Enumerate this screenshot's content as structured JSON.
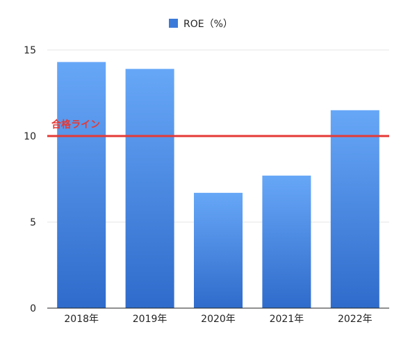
{
  "chart_data": {
    "type": "bar",
    "title": "",
    "xlabel": "",
    "ylabel": "",
    "categories": [
      "2018年",
      "2019年",
      "2020年",
      "2021年",
      "2022年"
    ],
    "series": [
      {
        "name": "ROE（%）",
        "values": [
          14.3,
          13.9,
          6.7,
          7.7,
          11.5
        ]
      }
    ],
    "ylim": [
      0,
      15
    ],
    "yticks": [
      0,
      5,
      10,
      15
    ],
    "ytick_labels": [
      "0",
      "5",
      "10",
      "15"
    ],
    "grid": true,
    "legend_position": "top",
    "reference_line": {
      "value": 10,
      "label": "合格ライン",
      "color": "#e53935"
    },
    "colors": {
      "bar_top": "#67a7f7",
      "bar_bottom": "#2f6bcb",
      "gridline": "#e6e6e6",
      "axis": "#222222",
      "legend_swatch": "#3b7ad9"
    }
  }
}
